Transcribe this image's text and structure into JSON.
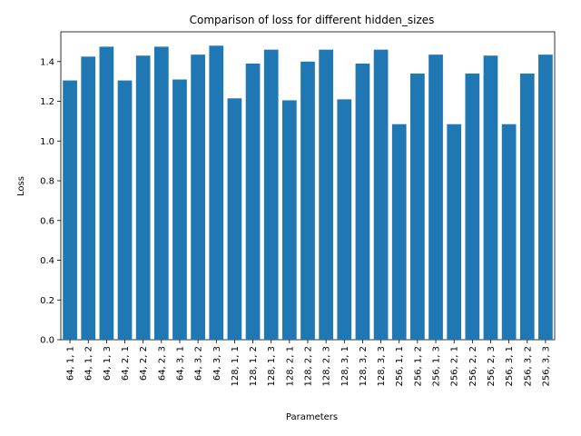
{
  "chart_data": {
    "type": "bar",
    "title": "Comparison of loss for different hidden_sizes",
    "xlabel": "Parameters",
    "ylabel": "Loss",
    "ylim": [
      0,
      1.55
    ],
    "yticks": [
      "0.0",
      "0.2",
      "0.4",
      "0.6",
      "0.8",
      "1.0",
      "1.2",
      "1.4"
    ],
    "bar_color": "#1f77b4",
    "categories": [
      "64, 1, 1",
      "64, 1, 2",
      "64, 1, 3",
      "64, 2, 1",
      "64, 2, 2",
      "64, 2, 3",
      "64, 3, 1",
      "64, 3, 2",
      "64, 3, 3",
      "128, 1, 1",
      "128, 1, 2",
      "128, 1, 3",
      "128, 2, 1",
      "128, 2, 2",
      "128, 2, 3",
      "128, 3, 1",
      "128, 3, 2",
      "128, 3, 3",
      "256, 1, 1",
      "256, 1, 2",
      "256, 1, 3",
      "256, 2, 1",
      "256, 2, 2",
      "256, 2, 3",
      "256, 3, 1",
      "256, 3, 2",
      "256, 3, 3"
    ],
    "values": [
      1.305,
      1.425,
      1.475,
      1.305,
      1.43,
      1.475,
      1.31,
      1.435,
      1.48,
      1.215,
      1.39,
      1.46,
      1.205,
      1.4,
      1.46,
      1.21,
      1.39,
      1.46,
      1.085,
      1.34,
      1.435,
      1.085,
      1.34,
      1.43,
      1.085,
      1.34,
      1.435
    ]
  }
}
